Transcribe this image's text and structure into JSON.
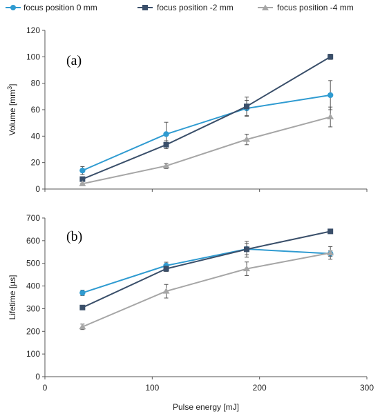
{
  "chart_data": {
    "type": "line",
    "legend_position": "top",
    "x_label": "Pulse energy [mJ]",
    "xlim": [
      0,
      300
    ],
    "x_ticks": [
      "0",
      "100",
      "200",
      "300"
    ],
    "legend": [
      {
        "name": "focus position 0 mm",
        "color": "#2f9bd1",
        "marker": "circle"
      },
      {
        "name": "focus position -2 mm",
        "color": "#3a4f6a",
        "marker": "square"
      },
      {
        "name": "focus position -4 mm",
        "color": "#a6a6a6",
        "marker": "triangle"
      }
    ],
    "panels": [
      {
        "label": "(a)",
        "ylabel_main": "Volume [mm",
        "ylabel_sup": "3",
        "ylabel_end": "]",
        "ylim": [
          0,
          120
        ],
        "y_ticks": [
          "0",
          "20",
          "40",
          "60",
          "80",
          "100",
          "120"
        ],
        "grid": false,
        "series": [
          {
            "name": "focus position 0 mm",
            "x": [
              35,
              113,
              188,
              266
            ],
            "y": [
              14,
              41.5,
              61,
              71
            ],
            "err": [
              3,
              9,
              6,
              11
            ]
          },
          {
            "name": "focus position -2 mm",
            "x": [
              35,
              113,
              188,
              266
            ],
            "y": [
              7.5,
              33.5,
              62.5,
              100
            ],
            "err": [
              1.5,
              3,
              7,
              2
            ]
          },
          {
            "name": "focus position -4 mm",
            "x": [
              35,
              113,
              188,
              266
            ],
            "y": [
              4,
              17.5,
              37.5,
              54.5
            ],
            "err": [
              0.5,
              2,
              4,
              7.5
            ]
          }
        ]
      },
      {
        "label": "(b)",
        "ylabel_main": "Lifetime [µs]",
        "ylabel_sup": "",
        "ylabel_end": "",
        "ylim": [
          0,
          700
        ],
        "y_ticks": [
          "0",
          "100",
          "200",
          "300",
          "400",
          "500",
          "600",
          "700"
        ],
        "grid": false,
        "series": [
          {
            "name": "focus position 0 mm",
            "x": [
              35,
              113,
              188,
              266
            ],
            "y": [
              370,
              490,
              563,
              543
            ],
            "err": [
              12,
              15,
              25,
              12
            ]
          },
          {
            "name": "focus position -2 mm",
            "x": [
              35,
              113,
              188,
              266
            ],
            "y": [
              305,
              476,
              562,
              641
            ],
            "err": [
              5,
              12,
              35,
              8
            ]
          },
          {
            "name": "focus position -4 mm",
            "x": [
              35,
              113,
              188,
              266
            ],
            "y": [
              220,
              377,
              476,
              546
            ],
            "err": [
              12,
              30,
              30,
              28
            ]
          }
        ]
      }
    ]
  }
}
